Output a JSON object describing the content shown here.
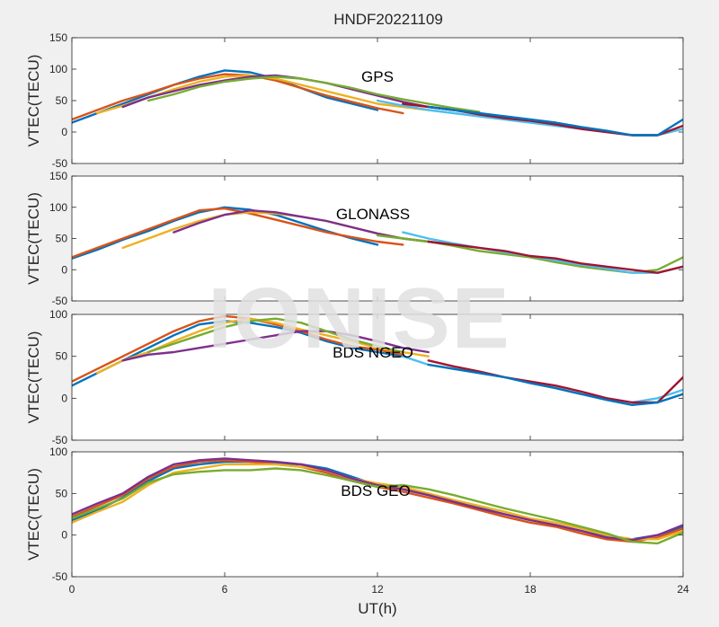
{
  "chart_data": {
    "title": "HNDF20221109",
    "xlabel": "UT(h)",
    "xlim": [
      0,
      24
    ],
    "xticks": [
      0,
      6,
      12,
      18,
      24
    ],
    "series_colors": [
      "#0072BD",
      "#D95319",
      "#EDB120",
      "#7E2F8E",
      "#77AC30",
      "#4DBEEE",
      "#A2142F"
    ],
    "panels": [
      {
        "type": "line",
        "title": "GPS",
        "ylabel": "VTEC(TECU)",
        "ylim": [
          -50,
          150
        ],
        "yticks": [
          -50,
          0,
          50,
          100,
          150
        ],
        "series": [
          {
            "x": [
              0,
              1,
              2,
              3,
              4,
              5,
              6,
              7,
              8,
              9,
              10,
              11,
              12
            ],
            "y": [
              15,
              30,
              45,
              60,
              75,
              88,
              98,
              95,
              85,
              70,
              55,
              45,
              35
            ]
          },
          {
            "x": [
              0,
              1,
              2,
              3,
              4,
              5,
              6,
              7,
              8,
              9,
              10,
              11,
              12,
              13
            ],
            "y": [
              20,
              35,
              50,
              62,
              75,
              85,
              92,
              90,
              82,
              70,
              58,
              48,
              38,
              30
            ]
          },
          {
            "x": [
              1,
              2,
              3,
              4,
              5,
              6,
              7,
              8,
              9,
              10,
              11,
              12,
              13,
              14
            ],
            "y": [
              30,
              42,
              55,
              68,
              80,
              88,
              90,
              85,
              75,
              65,
              55,
              45,
              40,
              35
            ]
          },
          {
            "x": [
              2,
              3,
              4,
              5,
              6,
              7,
              8,
              9,
              10,
              11,
              12,
              13,
              14,
              15
            ],
            "y": [
              40,
              55,
              65,
              75,
              82,
              88,
              90,
              85,
              78,
              68,
              58,
              48,
              40,
              35
            ]
          },
          {
            "x": [
              3,
              4,
              5,
              6,
              7,
              8,
              9,
              10,
              11,
              12,
              13,
              14,
              15,
              16
            ],
            "y": [
              50,
              60,
              72,
              80,
              85,
              88,
              85,
              78,
              70,
              60,
              52,
              45,
              38,
              32
            ]
          },
          {
            "x": [
              12,
              13,
              14,
              15,
              16,
              17,
              18,
              19,
              20,
              21,
              22,
              23,
              24
            ],
            "y": [
              50,
              42,
              35,
              30,
              25,
              20,
              15,
              10,
              5,
              0,
              -5,
              -5,
              5
            ]
          },
          {
            "x": [
              13,
              14,
              15,
              16,
              17,
              18,
              19,
              20,
              21,
              22,
              23,
              24
            ],
            "y": [
              45,
              40,
              35,
              28,
              22,
              18,
              12,
              5,
              0,
              -5,
              -5,
              10
            ]
          },
          {
            "x": [
              14,
              15,
              16,
              17,
              18,
              19,
              20,
              21,
              22,
              23,
              24
            ],
            "y": [
              40,
              35,
              30,
              25,
              20,
              15,
              8,
              2,
              -5,
              -5,
              20
            ]
          }
        ]
      },
      {
        "type": "line",
        "title": "GLONASS",
        "ylabel": "VTEC(TECU)",
        "ylim": [
          -50,
          150
        ],
        "yticks": [
          -50,
          0,
          50,
          100,
          150
        ],
        "series": [
          {
            "x": [
              0,
              1,
              2,
              3,
              4,
              5,
              6,
              7,
              8,
              9,
              10,
              11,
              12
            ],
            "y": [
              18,
              32,
              48,
              62,
              78,
              92,
              100,
              96,
              88,
              75,
              62,
              50,
              40
            ]
          },
          {
            "x": [
              0,
              1,
              2,
              3,
              4,
              5,
              6,
              7,
              8,
              9,
              10,
              11,
              12,
              13
            ],
            "y": [
              20,
              35,
              50,
              65,
              80,
              95,
              98,
              90,
              80,
              70,
              60,
              52,
              45,
              40
            ]
          },
          {
            "x": [
              2,
              3,
              4,
              5,
              6,
              7,
              8,
              9,
              10,
              11,
              12,
              13,
              14
            ],
            "y": [
              35,
              50,
              65,
              78,
              88,
              92,
              90,
              85,
              78,
              68,
              58,
              50,
              45
            ]
          },
          {
            "x": [
              4,
              5,
              6,
              7,
              8,
              9,
              10,
              11,
              12,
              13,
              14,
              15
            ],
            "y": [
              60,
              75,
              88,
              95,
              92,
              85,
              78,
              68,
              58,
              50,
              45,
              40
            ]
          },
          {
            "x": [
              12,
              13,
              14,
              15,
              16,
              17,
              18,
              19,
              20,
              21,
              22,
              23,
              24
            ],
            "y": [
              55,
              50,
              45,
              38,
              30,
              25,
              20,
              12,
              5,
              0,
              -5,
              0,
              20
            ]
          },
          {
            "x": [
              13,
              14,
              15,
              16,
              17,
              18,
              19,
              20,
              21,
              22,
              23,
              24
            ],
            "y": [
              60,
              50,
              42,
              35,
              28,
              22,
              15,
              8,
              2,
              -5,
              -5,
              5
            ]
          },
          {
            "x": [
              14,
              15,
              16,
              17,
              18,
              19,
              20,
              21,
              22,
              23,
              24
            ],
            "y": [
              45,
              40,
              35,
              30,
              22,
              18,
              10,
              5,
              0,
              -5,
              5
            ]
          }
        ]
      },
      {
        "type": "line",
        "title": "BDS NGEO",
        "ylabel": "VTEC(TECU)",
        "ylim": [
          -50,
          100
        ],
        "yticks": [
          -50,
          0,
          50,
          100
        ],
        "series": [
          {
            "x": [
              0,
              1,
              2,
              3,
              4,
              5,
              6,
              7,
              8,
              9,
              10,
              11,
              12,
              13
            ],
            "y": [
              15,
              30,
              45,
              60,
              75,
              88,
              92,
              90,
              85,
              78,
              68,
              60,
              55,
              50
            ]
          },
          {
            "x": [
              0,
              1,
              2,
              3,
              4,
              5,
              6,
              7,
              8,
              9,
              10,
              11,
              12,
              13
            ],
            "y": [
              20,
              35,
              50,
              65,
              80,
              92,
              98,
              95,
              88,
              80,
              70,
              62,
              58,
              52
            ]
          },
          {
            "x": [
              1,
              2,
              3,
              4,
              5,
              6,
              7,
              8,
              9,
              10,
              11,
              12,
              13,
              14
            ],
            "y": [
              30,
              45,
              55,
              68,
              80,
              90,
              95,
              90,
              82,
              75,
              68,
              60,
              55,
              50
            ]
          },
          {
            "x": [
              2,
              3,
              4,
              5,
              6,
              7,
              8,
              9,
              10,
              11,
              12,
              13,
              14
            ],
            "y": [
              45,
              52,
              55,
              60,
              65,
              70,
              75,
              80,
              80,
              75,
              68,
              60,
              55
            ]
          },
          {
            "x": [
              3,
              4,
              5,
              6,
              7,
              8,
              9,
              10,
              11,
              12,
              13
            ],
            "y": [
              55,
              65,
              75,
              85,
              92,
              95,
              90,
              80,
              70,
              62,
              55
            ]
          },
          {
            "x": [
              13,
              14,
              15,
              16,
              17,
              18,
              19,
              20,
              21,
              22,
              23,
              24
            ],
            "y": [
              50,
              40,
              35,
              30,
              25,
              18,
              12,
              5,
              0,
              -5,
              0,
              10
            ]
          },
          {
            "x": [
              14,
              15,
              16,
              17,
              18,
              19,
              20,
              21,
              22,
              23,
              24
            ],
            "y": [
              45,
              38,
              32,
              25,
              20,
              15,
              8,
              0,
              -5,
              -5,
              25
            ]
          },
          {
            "x": [
              14,
              15,
              16,
              17,
              18,
              19,
              20,
              21,
              22,
              23,
              24
            ],
            "y": [
              40,
              35,
              30,
              25,
              18,
              12,
              5,
              -2,
              -8,
              -5,
              5
            ]
          }
        ]
      },
      {
        "type": "line",
        "title": "BDS GEO",
        "ylabel": "VTEC(TECU)",
        "ylim": [
          -50,
          100
        ],
        "yticks": [
          -50,
          0,
          50,
          100
        ],
        "series": [
          {
            "x": [
              0,
              1,
              2,
              3,
              4,
              5,
              6,
              7,
              8,
              9,
              10,
              11,
              12,
              13,
              14,
              15,
              16,
              17,
              18,
              19,
              20,
              21,
              22,
              23,
              24
            ],
            "y": [
              18,
              30,
              45,
              65,
              80,
              85,
              88,
              88,
              86,
              85,
              80,
              70,
              60,
              55,
              48,
              40,
              33,
              25,
              18,
              12,
              5,
              -2,
              -5,
              0,
              10
            ]
          },
          {
            "x": [
              0,
              1,
              2,
              3,
              4,
              5,
              6,
              7,
              8,
              9,
              10,
              11,
              12,
              13,
              14,
              15,
              16,
              17,
              18,
              19,
              20,
              21,
              22,
              23,
              24
            ],
            "y": [
              22,
              35,
              48,
              68,
              82,
              88,
              90,
              88,
              85,
              82,
              75,
              65,
              58,
              52,
              45,
              38,
              30,
              22,
              15,
              10,
              2,
              -5,
              -8,
              -3,
              8
            ]
          },
          {
            "x": [
              0,
              1,
              2,
              3,
              4,
              5,
              6,
              7,
              8,
              9,
              10,
              11,
              12,
              13,
              14,
              15,
              16,
              17,
              18,
              19,
              20,
              21,
              22,
              23,
              24
            ],
            "y": [
              15,
              28,
              40,
              60,
              75,
              80,
              85,
              85,
              85,
              82,
              78,
              68,
              62,
              58,
              50,
              42,
              35,
              28,
              20,
              15,
              8,
              0,
              -5,
              -5,
              5
            ]
          },
          {
            "x": [
              0,
              1,
              2,
              3,
              4,
              5,
              6,
              7,
              8,
              9,
              10,
              11,
              12,
              13,
              14,
              15,
              16,
              17,
              18,
              19,
              20,
              21,
              22,
              23,
              24
            ],
            "y": [
              25,
              38,
              50,
              70,
              85,
              90,
              92,
              90,
              88,
              85,
              78,
              68,
              60,
              55,
              48,
              40,
              32,
              25,
              18,
              12,
              5,
              -3,
              -6,
              0,
              12
            ]
          },
          {
            "x": [
              0,
              1,
              2,
              3,
              4,
              5,
              6,
              7,
              8,
              9,
              10,
              11,
              12,
              13,
              14,
              15,
              16,
              17,
              18,
              19,
              20,
              21,
              22,
              23,
              24
            ],
            "y": [
              20,
              32,
              44,
              63,
              73,
              76,
              78,
              78,
              80,
              78,
              72,
              65,
              58,
              60,
              55,
              48,
              40,
              32,
              25,
              18,
              10,
              2,
              -8,
              -10,
              3
            ]
          }
        ]
      }
    ]
  }
}
